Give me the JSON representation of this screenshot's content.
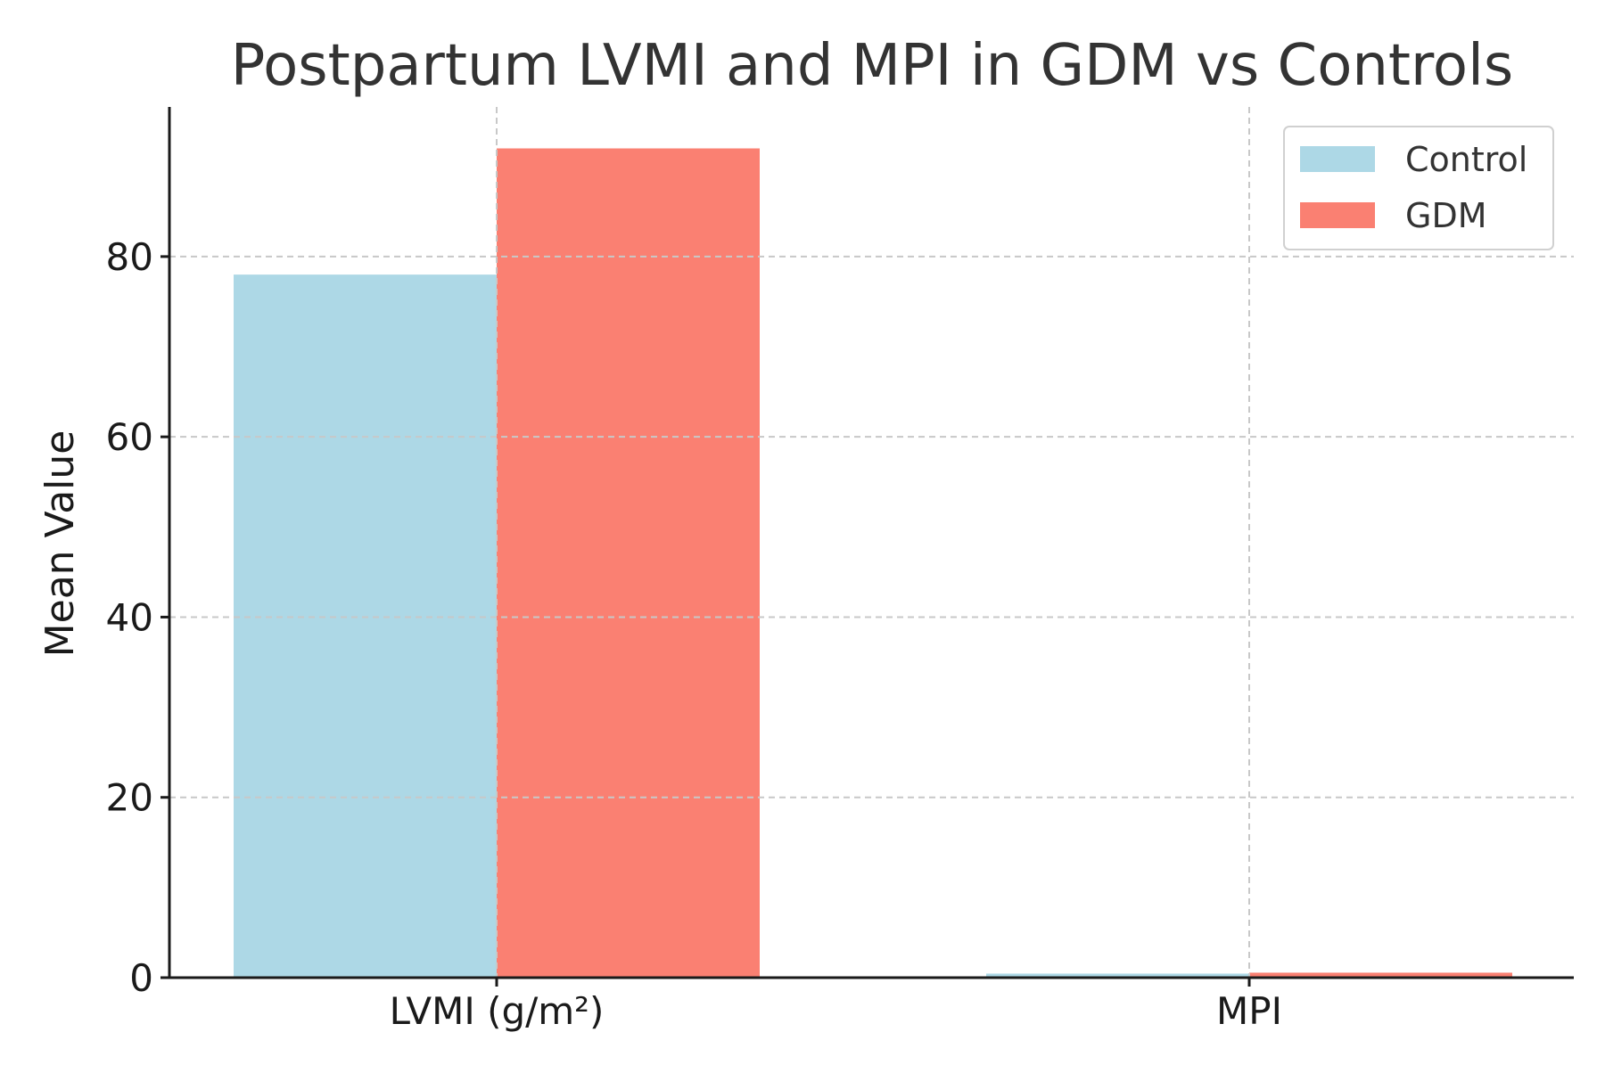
{
  "chart_data": {
    "type": "bar",
    "title": "Postpartum LVMI and MPI in GDM vs Controls",
    "xlabel": "",
    "ylabel": "Mean Value",
    "categories": [
      "LVMI (g/m²)",
      "MPI"
    ],
    "series": [
      {
        "name": "Control",
        "values": [
          78,
          0.45
        ],
        "color": "#add8e6"
      },
      {
        "name": "GDM",
        "values": [
          92,
          0.55
        ],
        "color": "#fa8072"
      }
    ],
    "ylim": [
      0,
      96.6
    ],
    "yticks": [
      0,
      20,
      40,
      60,
      80
    ],
    "grid": true,
    "legend_position": "top-right"
  }
}
